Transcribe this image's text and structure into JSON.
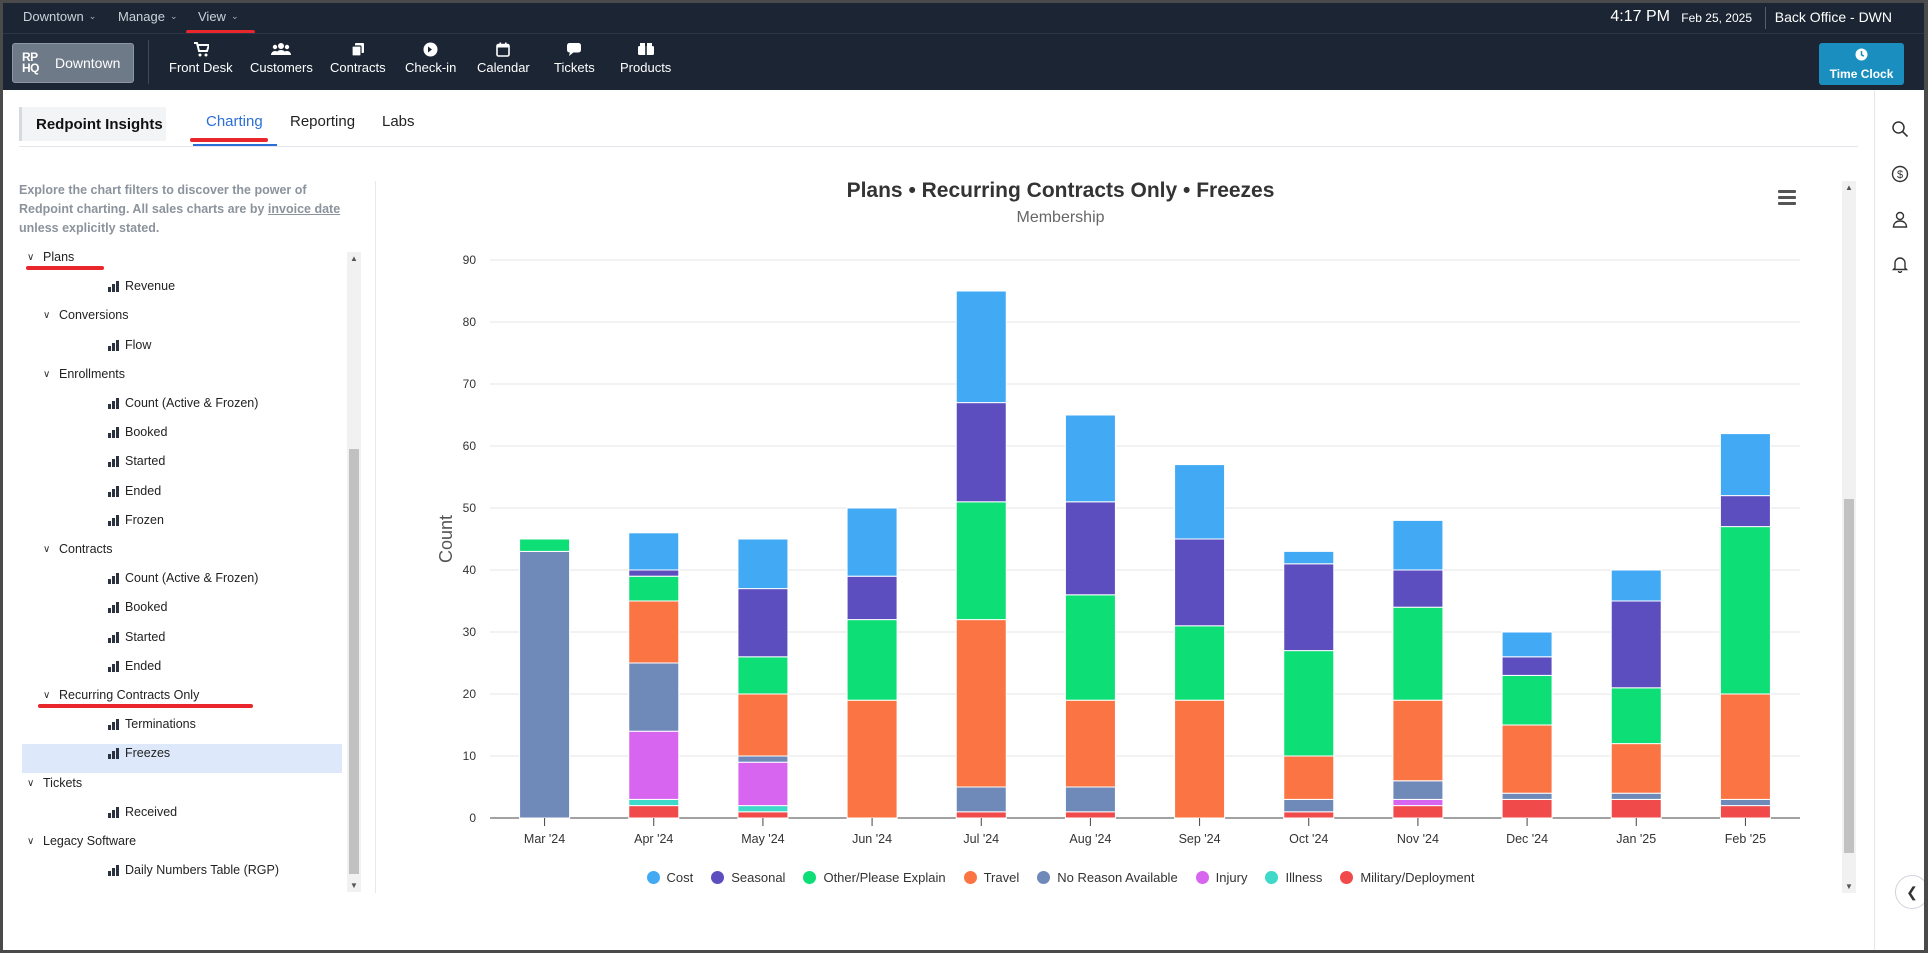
{
  "topbar": {
    "menus": [
      {
        "label": "Downtown"
      },
      {
        "label": "Manage"
      },
      {
        "label": "View"
      }
    ],
    "time": "4:17 PM",
    "date": "Feb 25, 2025",
    "office": "Back Office - DWN"
  },
  "navbar": {
    "logo_mark": "RP HQ",
    "location": "Downtown",
    "items": [
      {
        "label": "Front Desk",
        "icon": "cart-icon"
      },
      {
        "label": "Customers",
        "icon": "users-icon"
      },
      {
        "label": "Contracts",
        "icon": "contracts-icon"
      },
      {
        "label": "Check-in",
        "icon": "checkin-icon"
      },
      {
        "label": "Calendar",
        "icon": "calendar-icon"
      },
      {
        "label": "Tickets",
        "icon": "chat-icon"
      },
      {
        "label": "Products",
        "icon": "products-icon"
      }
    ],
    "time_clock": "Time Clock"
  },
  "tabs": {
    "crumb": "Redpoint Insights",
    "items": [
      "Charting",
      "Reporting",
      "Labs"
    ],
    "active": "Charting"
  },
  "sidebar": {
    "intro_1": "Explore the chart filters to discover the power of Redpoint charting. All sales charts are by ",
    "intro_link": "invoice date",
    "intro_2": " unless explicitly stated.",
    "tree": [
      {
        "label": "Plans",
        "type": "group",
        "level": 0
      },
      {
        "label": "Revenue",
        "type": "chart",
        "level": 2
      },
      {
        "label": "Conversions",
        "type": "group",
        "level": 1
      },
      {
        "label": "Flow",
        "type": "chart",
        "level": 2
      },
      {
        "label": "Enrollments",
        "type": "group",
        "level": 1
      },
      {
        "label": "Count (Active & Frozen)",
        "type": "chart",
        "level": 2
      },
      {
        "label": "Booked",
        "type": "chart",
        "level": 2
      },
      {
        "label": "Started",
        "type": "chart",
        "level": 2
      },
      {
        "label": "Ended",
        "type": "chart",
        "level": 2
      },
      {
        "label": "Frozen",
        "type": "chart",
        "level": 2
      },
      {
        "label": "Contracts",
        "type": "group",
        "level": 1
      },
      {
        "label": "Count (Active & Frozen)",
        "type": "chart",
        "level": 2
      },
      {
        "label": "Booked",
        "type": "chart",
        "level": 2
      },
      {
        "label": "Started",
        "type": "chart",
        "level": 2
      },
      {
        "label": "Ended",
        "type": "chart",
        "level": 2
      },
      {
        "label": "Recurring Contracts Only",
        "type": "group",
        "level": 1
      },
      {
        "label": "Terminations",
        "type": "chart",
        "level": 2
      },
      {
        "label": "Freezes",
        "type": "chart",
        "level": 2,
        "selected": true
      },
      {
        "label": "Tickets",
        "type": "group",
        "level": 0
      },
      {
        "label": "Received",
        "type": "chart",
        "level": 2
      },
      {
        "label": "Legacy Software",
        "type": "group",
        "level": 0
      },
      {
        "label": "Daily Numbers Table (RGP)",
        "type": "chart",
        "level": 2
      }
    ]
  },
  "chart_data": {
    "type": "bar",
    "stacked": true,
    "title": "Plans • Recurring Contracts Only • Freezes",
    "subtitle": "Membership",
    "xlabel": "",
    "ylabel": "Count",
    "ylim": [
      0,
      90
    ],
    "yticks": [
      0,
      10,
      20,
      30,
      40,
      50,
      60,
      70,
      80,
      90
    ],
    "grid": true,
    "legend_position": "bottom",
    "categories": [
      "Mar '24",
      "Apr '24",
      "May '24",
      "Jun '24",
      "Jul '24",
      "Aug '24",
      "Sep '24",
      "Oct '24",
      "Nov '24",
      "Dec '24",
      "Jan '25",
      "Feb '25"
    ],
    "series": [
      {
        "name": "Military/Deployment",
        "color": "#f04a4a",
        "values": [
          0,
          2,
          1,
          0,
          1,
          1,
          0,
          1,
          2,
          3,
          3,
          2
        ]
      },
      {
        "name": "Illness",
        "color": "#3fd9c9",
        "values": [
          0,
          1,
          1,
          0,
          0,
          0,
          0,
          0,
          0,
          0,
          0,
          0
        ]
      },
      {
        "name": "Injury",
        "color": "#d865f0",
        "values": [
          0,
          11,
          7,
          0,
          0,
          0,
          0,
          0,
          1,
          0,
          0,
          0
        ]
      },
      {
        "name": "No Reason Available",
        "color": "#6f89b8",
        "values": [
          43,
          11,
          1,
          0,
          4,
          4,
          0,
          2,
          3,
          1,
          1,
          1
        ]
      },
      {
        "name": "Travel",
        "color": "#fb7443",
        "values": [
          0,
          10,
          10,
          19,
          27,
          14,
          19,
          7,
          13,
          11,
          8,
          17
        ]
      },
      {
        "name": "Other/Please Explain",
        "color": "#0ede76",
        "values": [
          2,
          4,
          6,
          13,
          19,
          17,
          12,
          17,
          15,
          8,
          9,
          27
        ]
      },
      {
        "name": "Seasonal",
        "color": "#5d4ec0",
        "values": [
          0,
          1,
          11,
          7,
          16,
          15,
          14,
          14,
          6,
          3,
          14,
          5
        ]
      },
      {
        "name": "Cost",
        "color": "#42aaf5",
        "values": [
          0,
          6,
          8,
          11,
          18,
          14,
          12,
          2,
          8,
          4,
          5,
          10
        ]
      }
    ],
    "legend_order": [
      "Cost",
      "Seasonal",
      "Other/Please Explain",
      "Travel",
      "No Reason Available",
      "Injury",
      "Illness",
      "Military/Deployment"
    ]
  },
  "colors": {
    "nav_bg": "#1b2533",
    "accent_blue": "#2b6fd6",
    "time_clock_bg": "#1a8fbf",
    "annotation_red": "#e8262b",
    "selected_row": "#dde9fb"
  }
}
